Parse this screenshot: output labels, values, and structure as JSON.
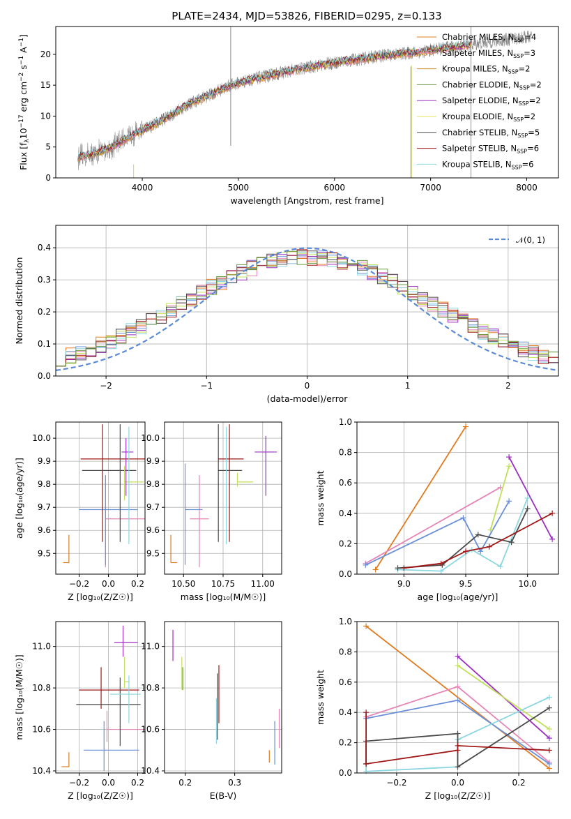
{
  "title": "PLATE=2434, MJD=53826, FIBERID=0295, z=0.133",
  "colors": [
    "#e07b1f",
    "#e684b6",
    "#6a8fd8",
    "#9b2fc0",
    "#c1df5a",
    "#8bd6e0",
    "#4a4a4a",
    "#a01616",
    "#6e9a44",
    "#888888"
  ],
  "chart_data": [
    {
      "type": "line",
      "name": "spectrum",
      "xlabel": "wavelength [Angstrom, rest frame]",
      "ylabel_parts": [
        "Flux [f",
        "λ",
        "10",
        "−17",
        " erg cm",
        "−2",
        " s",
        "−1",
        " A",
        "−1",
        "]"
      ],
      "xlim": [
        3100,
        8330
      ],
      "ylim": [
        0,
        24.5
      ],
      "xticks": [
        4000,
        5000,
        6000,
        7000,
        8000
      ],
      "yticks": [
        0,
        5,
        10,
        15,
        20
      ],
      "grid": false,
      "legend_position": "upper right",
      "continuum_x": [
        3330,
        3500,
        3700,
        3900,
        4100,
        4300,
        4500,
        4700,
        4900,
        5100,
        5300,
        5500,
        5700,
        5900,
        6100,
        6300,
        6500,
        6700,
        6900,
        7100,
        7300,
        7500,
        7700,
        7900,
        8050
      ],
      "continuum_y": [
        3.4,
        3.9,
        5.1,
        7.1,
        8.4,
        10.2,
        12.1,
        13.4,
        14.9,
        15.8,
        16.5,
        17.2,
        17.8,
        18.4,
        18.9,
        19.3,
        19.8,
        20.1,
        20.4,
        20.9,
        21.3,
        21.8,
        22.2,
        22.6,
        22.9
      ],
      "data_extent_x": [
        3330,
        8050
      ],
      "model_extent_x": [
        3330,
        7420
      ],
      "series": [
        {
          "name": "Chabrier MILES, N",
          "sub": "SSP",
          "suffix": "=4",
          "color": "#e07b1f"
        },
        {
          "name": "Salpeter MILES, N",
          "sub": "SSP",
          "suffix": "=3",
          "color": "#e684b6"
        },
        {
          "name": "Kroupa MILES, N",
          "sub": "SSP",
          "suffix": "=2",
          "color": "#cc8a2a"
        },
        {
          "name": "Chabrier ELODIE, N",
          "sub": "SSP",
          "suffix": "=2",
          "color": "#6e9a44"
        },
        {
          "name": "Salpeter ELODIE, N",
          "sub": "SSP",
          "suffix": "=2",
          "color": "#9b2fc0"
        },
        {
          "name": "Kroupa ELODIE, N",
          "sub": "SSP",
          "suffix": "=2",
          "color": "#e3e35a"
        },
        {
          "name": "Chabrier STELIB, N",
          "sub": "SSP",
          "suffix": "=5",
          "color": "#4a4a4a"
        },
        {
          "name": "Salpeter STELIB, N",
          "sub": "SSP",
          "suffix": "=6",
          "color": "#a01616"
        },
        {
          "name": "Kroupa STELIB, N",
          "sub": "SSP",
          "suffix": "=6",
          "color": "#8bd6e0"
        }
      ],
      "vertical_spikes": [
        {
          "x": 3910,
          "y": [
            0,
            2.2
          ],
          "color": "#c1df5a"
        },
        {
          "x": 4920,
          "y": [
            5.2,
            25.0
          ],
          "color": "#888888"
        },
        {
          "x": 6800,
          "y": [
            0,
            18.2
          ],
          "color": "#c1df5a"
        },
        {
          "x": 6795,
          "y": [
            0,
            18.0
          ],
          "color": "#e07b1f"
        },
        {
          "x": 7420,
          "y": [
            0,
            24.5
          ],
          "color": "#e07b1f"
        }
      ]
    },
    {
      "type": "step",
      "name": "residuals",
      "xlabel": "(data-model)/error",
      "ylabel": "Normed distribution",
      "xlim": [
        -2.5,
        2.5
      ],
      "ylim": [
        0,
        0.47
      ],
      "xticks": [
        -2,
        -1,
        0,
        1,
        2
      ],
      "xtick_labels": [
        "−2",
        "−1",
        "0",
        "1",
        "2"
      ],
      "yticks": [
        0.0,
        0.1,
        0.2,
        0.3,
        0.4
      ],
      "ytick_labels": [
        "0.0",
        "0.1",
        "0.2",
        "0.3",
        "0.4"
      ],
      "grid": true,
      "bin_width": 0.1,
      "n_series": 9,
      "reference": {
        "label": "𝒩(0, 1)",
        "mean": 0,
        "sigma": 1,
        "color": "#5b8bd6"
      },
      "legend_position": "upper right"
    },
    {
      "type": "errorbar",
      "name": "age-vs-Z",
      "xlabel": "Z [log₁₀(Z/Z☉)]",
      "ylabel": "age  [log₁₀(age/yr)]",
      "xlim": [
        -0.36,
        0.25
      ],
      "ylim": [
        9.41,
        10.07
      ],
      "xticks": [
        -0.2,
        0.0,
        0.2
      ],
      "xtick_labels": [
        "−0.2",
        "0.0",
        "0.2"
      ],
      "yticks": [
        9.5,
        9.6,
        9.7,
        9.8,
        9.9,
        10.0
      ],
      "ytick_labels": [
        "9.5",
        "9.6",
        "9.7",
        "9.8",
        "9.9",
        "10.0"
      ],
      "grid": true,
      "points": [
        {
          "x": -0.27,
          "xerr": [
            0.04,
            0
          ],
          "y": 9.46,
          "yerr": [
            0,
            0.12
          ],
          "color": "#e07b1f"
        },
        {
          "x": -0.02,
          "xerr": [
            0.0,
            0.32
          ],
          "y": 9.65,
          "yerr": [
            0.21,
            0.17
          ],
          "color": "#e684b6"
        },
        {
          "x": -0.02,
          "xerr": [
            0.18,
            0.22
          ],
          "y": 9.69,
          "yerr": [
            0.24,
            0.15
          ],
          "color": "#6a8fd8"
        },
        {
          "x": -0.04,
          "xerr": [
            0.15,
            0.32
          ],
          "y": 9.91,
          "yerr": [
            0.36,
            0.15
          ],
          "color": "#a01616"
        },
        {
          "x": 0.08,
          "xerr": [
            0.26,
            0.11
          ],
          "y": 9.86,
          "yerr": [
            0.31,
            0.2
          ],
          "color": "#4a4a4a"
        },
        {
          "x": 0.11,
          "xerr": [
            0.0,
            0.13
          ],
          "y": 9.81,
          "yerr": [
            0.08,
            0.07
          ],
          "color": "#c1df5a"
        },
        {
          "x": 0.12,
          "xerr": [
            0.03,
            0.05
          ],
          "y": 9.94,
          "yerr": [
            0.19,
            0.06
          ],
          "color": "#9b2fc0"
        },
        {
          "x": 0.14,
          "xerr": [
            0.0,
            0.0
          ],
          "y": 9.8,
          "yerr": [
            0.26,
            0.25
          ],
          "color": "#8bd6e0"
        }
      ]
    },
    {
      "type": "errorbar",
      "name": "age-vs-mass",
      "xlabel": "mass [log₁₀(M/M☉)]",
      "ylabel": "",
      "xlim": [
        10.38,
        11.12
      ],
      "ylim": [
        9.41,
        10.07
      ],
      "xticks": [
        10.5,
        10.75,
        11.0
      ],
      "xtick_labels": [
        "10.50",
        "10.75",
        "11.00"
      ],
      "yticks": [
        9.5,
        9.6,
        9.7,
        9.8,
        9.9,
        10.0
      ],
      "ytick_labels": [
        "9.5",
        "9.6",
        "9.7",
        "9.8",
        "9.9",
        "10.0"
      ],
      "grid": true,
      "points": [
        {
          "x": 10.42,
          "xerr": [
            0,
            0.04
          ],
          "y": 9.46,
          "yerr": [
            0,
            0.12
          ],
          "color": "#e07b1f"
        },
        {
          "x": 10.6,
          "xerr": [
            0.06,
            0.06
          ],
          "y": 9.65,
          "yerr": [
            0.21,
            0.19
          ],
          "color": "#e684b6"
        },
        {
          "x": 10.51,
          "xerr": [
            0.0,
            0.11
          ],
          "y": 9.69,
          "yerr": [
            0.24,
            0.2
          ],
          "color": "#6a8fd8"
        },
        {
          "x": 10.79,
          "xerr": [
            0.07,
            0.09
          ],
          "y": 9.91,
          "yerr": [
            0.36,
            0.15
          ],
          "color": "#a01616"
        },
        {
          "x": 10.72,
          "xerr": [
            0.0,
            0.15
          ],
          "y": 9.86,
          "yerr": [
            0.31,
            0.2
          ],
          "color": "#4a4a4a"
        },
        {
          "x": 10.84,
          "xerr": [
            0.0,
            0.1
          ],
          "y": 9.81,
          "yerr": [
            0.02,
            0.04
          ],
          "color": "#c1df5a"
        },
        {
          "x": 11.02,
          "xerr": [
            0.07,
            0.07
          ],
          "y": 9.94,
          "yerr": [
            0.19,
            0.07
          ],
          "color": "#9b2fc0"
        },
        {
          "x": 10.77,
          "xerr": [
            0.0,
            0.0
          ],
          "y": 9.8,
          "yerr": [
            0.26,
            0.25
          ],
          "color": "#8bd6e0"
        }
      ]
    },
    {
      "type": "line",
      "name": "mass-weight-vs-age",
      "xlabel": "age  [log₁₀(age/yr)]",
      "ylabel": "mass weight",
      "xlim": [
        8.62,
        10.25
      ],
      "ylim": [
        0.0,
        1.0
      ],
      "xticks": [
        9.0,
        9.5,
        10.0
      ],
      "xtick_labels": [
        "9.0",
        "9.5",
        "10.0"
      ],
      "yticks": [
        0.0,
        0.2,
        0.4,
        0.6,
        0.8,
        1.0
      ],
      "ytick_labels": [
        "0.0",
        "0.2",
        "0.4",
        "0.6",
        "0.8",
        "1.0"
      ],
      "grid": true,
      "series": [
        {
          "color": "#e07b1f",
          "x": [
            8.77,
            9.5
          ],
          "y": [
            0.03,
            0.97
          ]
        },
        {
          "color": "#e684b6",
          "x": [
            8.69,
            9.78
          ],
          "y": [
            0.07,
            0.57
          ]
        },
        {
          "color": "#6a8fd8",
          "x": [
            8.69,
            9.48,
            9.62,
            9.85
          ],
          "y": [
            0.06,
            0.37,
            0.15,
            0.48
          ]
        },
        {
          "color": "#9b2fc0",
          "x": [
            9.85,
            10.2
          ],
          "y": [
            0.77,
            0.23
          ]
        },
        {
          "color": "#c1df5a",
          "x": [
            9.7,
            9.85
          ],
          "y": [
            0.29,
            0.71
          ]
        },
        {
          "color": "#8bd6e0",
          "x": [
            8.95,
            9.3,
            9.55,
            9.78,
            10.0
          ],
          "y": [
            0.03,
            0.02,
            0.16,
            0.05,
            0.5
          ]
        },
        {
          "color": "#4a4a4a",
          "x": [
            8.95,
            9.31,
            9.6,
            9.87,
            10.0
          ],
          "y": [
            0.04,
            0.06,
            0.26,
            0.21,
            0.43
          ]
        },
        {
          "color": "#a01616",
          "x": [
            9.0,
            9.3,
            9.5,
            9.69,
            10.2
          ],
          "y": [
            0.04,
            0.07,
            0.15,
            0.18,
            0.4
          ]
        }
      ]
    },
    {
      "type": "errorbar",
      "name": "mass-vs-Z",
      "xlabel": "Z [log₁₀(Z/Z☉)]",
      "ylabel": "mass [log₁₀(M/M☉)]",
      "xlim": [
        -0.36,
        0.25
      ],
      "ylim": [
        10.39,
        11.12
      ],
      "xticks": [
        -0.2,
        0.0,
        0.2
      ],
      "xtick_labels": [
        "−0.2",
        "0.0",
        "0.2"
      ],
      "yticks": [
        10.4,
        10.6,
        10.8,
        11.0
      ],
      "ytick_labels": [
        "10.4",
        "10.6",
        "10.8",
        "11.0"
      ],
      "grid": true,
      "points": [
        {
          "x": -0.27,
          "xerr": [
            0.05,
            0
          ],
          "y": 10.42,
          "yerr": [
            0,
            0.07
          ],
          "color": "#e07b1f"
        },
        {
          "x": -0.01,
          "xerr": [
            0.0,
            0.32
          ],
          "y": 10.6,
          "yerr": [
            0.06,
            0.09
          ],
          "color": "#e684b6"
        },
        {
          "x": -0.03,
          "xerr": [
            0.14,
            0.24
          ],
          "y": 10.5,
          "yerr": [
            0.1,
            0.14
          ],
          "color": "#6a8fd8"
        },
        {
          "x": -0.05,
          "xerr": [
            0.15,
            0.26
          ],
          "y": 10.79,
          "yerr": [
            0.09,
            0.11
          ],
          "color": "#a01616"
        },
        {
          "x": 0.08,
          "xerr": [
            0.3,
            0.14
          ],
          "y": 10.72,
          "yerr": [
            0.2,
            0.13
          ],
          "color": "#4a4a4a"
        },
        {
          "x": 0.11,
          "xerr": [
            0.0,
            0.03
          ],
          "y": 10.83,
          "yerr": [
            0.03,
            0.12
          ],
          "color": "#c1df5a"
        },
        {
          "x": 0.1,
          "xerr": [
            0.06,
            0.1
          ],
          "y": 11.02,
          "yerr": [
            0.07,
            0.08
          ],
          "color": "#9b2fc0"
        },
        {
          "x": 0.14,
          "xerr": [
            0.13,
            0.08
          ],
          "y": 10.77,
          "yerr": [
            0.14,
            0.09
          ],
          "color": "#8bd6e0"
        }
      ]
    },
    {
      "type": "errorbar",
      "name": "mass-vs-ebv",
      "xlabel": "E(B-V)",
      "ylabel": "",
      "xlim": [
        0.158,
        0.395
      ],
      "ylim": [
        10.39,
        11.12
      ],
      "xticks": [
        0.2,
        0.3
      ],
      "xtick_labels": [
        "0.2",
        "0.3"
      ],
      "yticks": [
        10.4,
        10.6,
        10.8,
        11.0
      ],
      "ytick_labels": [
        "10.4",
        "10.6",
        "10.8",
        "11.0"
      ],
      "grid": true,
      "points": [
        {
          "x": 0.175,
          "xerr": [
            0,
            0
          ],
          "y": 11.0,
          "yerr": [
            0.07,
            0.08
          ],
          "color": "#9b2fc0"
        },
        {
          "x": 0.193,
          "xerr": [
            0,
            0
          ],
          "y": 10.83,
          "yerr": [
            0.04,
            0.12
          ],
          "color": "#c1df5a"
        },
        {
          "x": 0.195,
          "xerr": [
            0,
            0
          ],
          "y": 10.86,
          "yerr": [
            0.07,
            0.04
          ],
          "color": "#6e9a44"
        },
        {
          "x": 0.265,
          "xerr": [
            0,
            0
          ],
          "y": 10.75,
          "yerr": [
            0.2,
            0.12
          ],
          "color": "#4a4a4a"
        },
        {
          "x": 0.268,
          "xerr": [
            0,
            0
          ],
          "y": 10.77,
          "yerr": [
            0.14,
            0.14
          ],
          "color": "#a01616"
        },
        {
          "x": 0.263,
          "xerr": [
            0,
            0
          ],
          "y": 10.65,
          "yerr": [
            0.12,
            0.1
          ],
          "color": "#8bd6e0"
        },
        {
          "x": 0.37,
          "xerr": [
            0,
            0
          ],
          "y": 10.44,
          "yerr": [
            0.0,
            0.06
          ],
          "color": "#e07b1f"
        },
        {
          "x": 0.381,
          "xerr": [
            0,
            0
          ],
          "y": 10.53,
          "yerr": [
            0.1,
            0.11
          ],
          "color": "#6a8fd8"
        },
        {
          "x": 0.39,
          "xerr": [
            0,
            0
          ],
          "y": 10.6,
          "yerr": [
            0.09,
            0.1
          ],
          "color": "#e684b6"
        }
      ]
    },
    {
      "type": "line",
      "name": "mass-weight-vs-Z",
      "xlabel": "Z [log₁₀(Z/Z☉)]",
      "ylabel": "mass weight",
      "xlim": [
        -0.33,
        0.33
      ],
      "ylim": [
        0.0,
        1.0
      ],
      "xticks": [
        -0.2,
        0.0,
        0.2
      ],
      "xtick_labels": [
        "−0.2",
        "0.0",
        "0.2"
      ],
      "yticks": [
        0.0,
        0.2,
        0.4,
        0.6,
        0.8,
        1.0
      ],
      "ytick_labels": [
        "0.0",
        "0.2",
        "0.4",
        "0.6",
        "0.8",
        "1.0"
      ],
      "grid": true,
      "series": [
        {
          "color": "#e07b1f",
          "x": [
            -0.3,
            0.3
          ],
          "y": [
            0.97,
            0.03
          ]
        },
        {
          "color": "#e684b6",
          "x": [
            -0.3,
            0.0,
            0.3
          ],
          "y": [
            0.37,
            0.57,
            0.07
          ]
        },
        {
          "color": "#6a8fd8",
          "x": [
            -0.3,
            0.0,
            0.3
          ],
          "y": [
            0.36,
            0.48,
            0.06
          ]
        },
        {
          "color": "#9b2fc0",
          "x": [
            0.0,
            0.3
          ],
          "y": [
            0.77,
            0.23
          ]
        },
        {
          "color": "#c1df5a",
          "x": [
            0.0,
            0.3
          ],
          "y": [
            0.71,
            0.29
          ]
        },
        {
          "color": "#8bd6e0",
          "x": [
            -0.3,
            -0.3,
            0.0,
            0.0,
            0.3
          ],
          "y": [
            0.21,
            0.01,
            0.04,
            0.22,
            0.5
          ]
        },
        {
          "color": "#4a4a4a",
          "x": [
            -0.3,
            -0.3,
            0.0,
            0.0,
            0.3
          ],
          "y": [
            0.06,
            0.21,
            0.26,
            0.04,
            0.43
          ]
        },
        {
          "color": "#a01616",
          "x": [
            -0.3,
            -0.3,
            0.0,
            0.0,
            0.3
          ],
          "y": [
            0.4,
            0.06,
            0.15,
            0.18,
            0.15
          ]
        }
      ]
    }
  ]
}
